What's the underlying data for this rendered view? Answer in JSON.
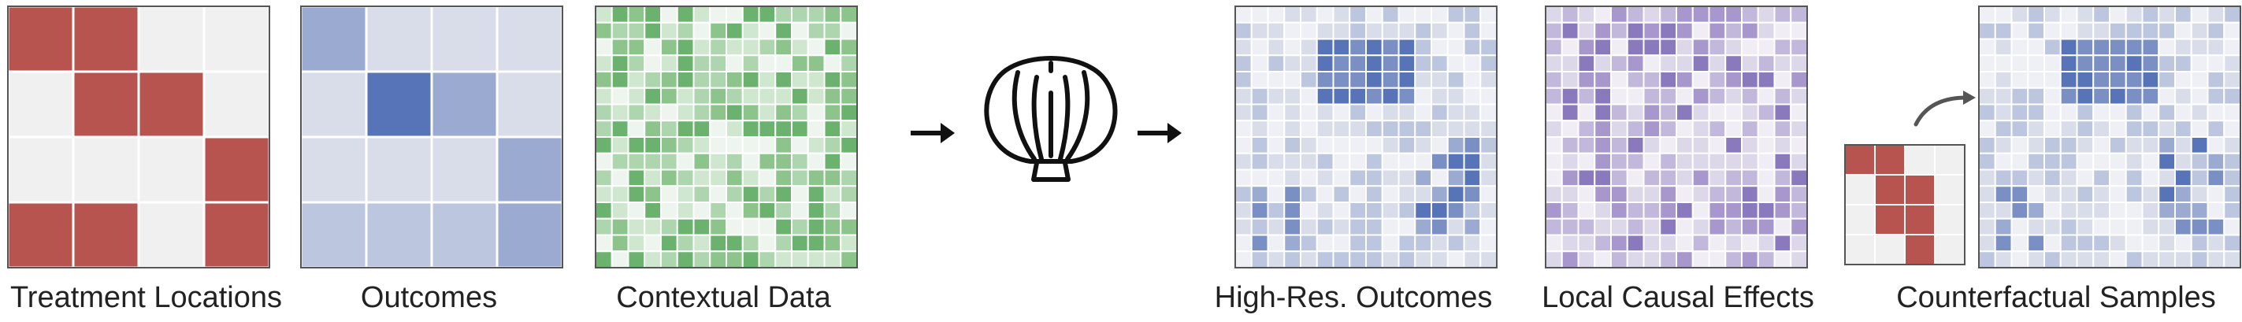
{
  "labels": {
    "treatment": "Treatment Locations",
    "outcomes": "Outcomes",
    "contextual": "Contextual Data",
    "highres": "High-Res. Outcomes",
    "causal": "Local Causal Effects",
    "counterfactual": "Counterfactual Samples"
  },
  "colors": {
    "treatment_on": "#b85450",
    "treatment_off": "#f1f0f1",
    "grid_line": "#ffffff",
    "frame": "#555555",
    "arrow": "#111111",
    "curved_arrow": "#555555",
    "blue_scale": [
      "#eef0f5",
      "#d8dde9",
      "#bcc6de",
      "#9aaad0",
      "#7a8fc4",
      "#5874b8"
    ],
    "green_scale": [
      "#eef5ee",
      "#cfe6cf",
      "#aed6ae",
      "#8cc48c",
      "#6bb26f"
    ],
    "purple_scale": [
      "#f0eef4",
      "#ddd7ea",
      "#c2b8dc",
      "#a797cc",
      "#8a79bd"
    ]
  },
  "icons": {
    "arrow_1": "right-arrow-icon",
    "model": "scallop-shell-icon",
    "arrow_2": "right-arrow-icon",
    "counterfactual_arrow": "curved-arrow-icon"
  },
  "grids": {
    "treatment": {
      "rows": 4,
      "cols": 4,
      "cells": [
        [
          1,
          1,
          0,
          0
        ],
        [
          0,
          1,
          1,
          0
        ],
        [
          0,
          0,
          0,
          1
        ],
        [
          1,
          1,
          0,
          1
        ]
      ]
    },
    "outcomes": {
      "rows": 4,
      "cols": 4,
      "cells": [
        [
          3,
          1,
          1,
          1
        ],
        [
          1,
          5,
          3,
          1
        ],
        [
          1,
          1,
          1,
          3
        ],
        [
          2,
          2,
          2,
          3
        ]
      ]
    },
    "counterfactual_treatment": {
      "rows": 4,
      "cols": 4,
      "cells": [
        [
          1,
          1,
          0,
          0
        ],
        [
          0,
          1,
          1,
          0
        ],
        [
          0,
          1,
          1,
          0
        ],
        [
          0,
          0,
          1,
          0
        ]
      ]
    }
  }
}
